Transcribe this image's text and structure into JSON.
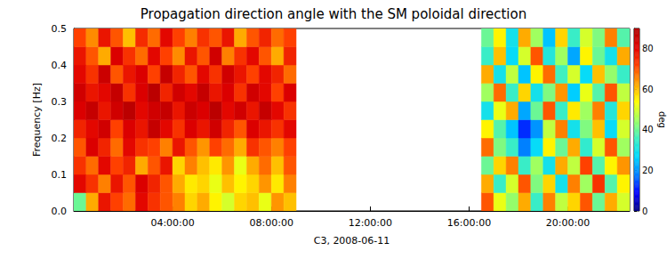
{
  "chart_data": {
    "type": "heatmap",
    "title": "Propagation direction angle with the SM poloidal direction",
    "x_label": "C3, 2008-06-11",
    "y_label": "Frequency [Hz]",
    "xlim": [
      0,
      22.5
    ],
    "xticks": [
      {
        "value": 4,
        "label": "04:00:00"
      },
      {
        "value": 8,
        "label": "08:00:00"
      },
      {
        "value": 12,
        "label": "12:00:00"
      },
      {
        "value": 16,
        "label": "16:00:00"
      },
      {
        "value": 20,
        "label": "20:00:00"
      }
    ],
    "ylim": [
      0,
      0.5
    ],
    "yticks": [
      {
        "value": 0,
        "label": "0.0"
      },
      0.1,
      0.2,
      0.3,
      0.4,
      0.5
    ],
    "grid": false,
    "x": [
      0,
      0.5,
      1,
      1.5,
      2,
      2.5,
      3,
      3.5,
      4,
      4.5,
      5,
      5.5,
      6,
      6.5,
      7,
      7.5,
      8,
      8.5,
      16.5,
      17,
      17.5,
      18,
      18.5,
      19,
      19.5,
      20,
      20.5,
      21,
      21.5,
      22
    ],
    "y": [
      0,
      0.05,
      0.1,
      0.15,
      0.2,
      0.25,
      0.3,
      0.35,
      0.4,
      0.45
    ],
    "cell_width": 0.5,
    "cell_height": 0.05,
    "values": [
      [
        40,
        62,
        78,
        72,
        68,
        80,
        74,
        70,
        66,
        58,
        62,
        55,
        50,
        58,
        60,
        52,
        64,
        60,
        70,
        52,
        44,
        62,
        35,
        66,
        48,
        58,
        70,
        40,
        62,
        50
      ],
      [
        80,
        74,
        66,
        78,
        70,
        82,
        76,
        70,
        62,
        56,
        58,
        52,
        60,
        55,
        58,
        64,
        56,
        66,
        62,
        35,
        50,
        70,
        42,
        58,
        30,
        66,
        45,
        74,
        38,
        55
      ],
      [
        74,
        68,
        80,
        72,
        76,
        62,
        70,
        78,
        58,
        66,
        60,
        56,
        64,
        52,
        62,
        68,
        60,
        70,
        40,
        58,
        66,
        35,
        45,
        30,
        62,
        48,
        72,
        38,
        55,
        64
      ],
      [
        70,
        82,
        76,
        68,
        80,
        74,
        72,
        66,
        78,
        70,
        64,
        72,
        68,
        62,
        74,
        70,
        66,
        72,
        68,
        42,
        35,
        18,
        28,
        55,
        40,
        62,
        34,
        50,
        70,
        45
      ],
      [
        76,
        80,
        84,
        72,
        82,
        78,
        86,
        80,
        74,
        82,
        78,
        84,
        76,
        70,
        82,
        78,
        74,
        80,
        55,
        38,
        25,
        12,
        20,
        48,
        66,
        30,
        42,
        60,
        28,
        50
      ],
      [
        82,
        86,
        78,
        84,
        88,
        80,
        84,
        86,
        78,
        85,
        82,
        88,
        80,
        84,
        78,
        86,
        80,
        74,
        30,
        52,
        62,
        22,
        40,
        70,
        35,
        56,
        45,
        66,
        32,
        58
      ],
      [
        84,
        78,
        80,
        86,
        74,
        82,
        88,
        76,
        84,
        80,
        86,
        78,
        82,
        74,
        84,
        80,
        72,
        82,
        45,
        68,
        35,
        58,
        30,
        42,
        64,
        26,
        52,
        38,
        70,
        48
      ],
      [
        80,
        74,
        85,
        70,
        78,
        82,
        72,
        86,
        76,
        70,
        80,
        74,
        84,
        78,
        72,
        80,
        76,
        68,
        62,
        30,
        48,
        25,
        55,
        68,
        36,
        50,
        28,
        60,
        44,
        35
      ],
      [
        78,
        70,
        62,
        82,
        74,
        68,
        80,
        72,
        65,
        78,
        70,
        84,
        66,
        74,
        80,
        70,
        62,
        76,
        35,
        60,
        28,
        50,
        70,
        32,
        45,
        22,
        55,
        40,
        30,
        62
      ],
      [
        72,
        65,
        78,
        70,
        60,
        75,
        68,
        80,
        72,
        66,
        74,
        70,
        78,
        62,
        70,
        76,
        68,
        72,
        40,
        55,
        30,
        62,
        45,
        25,
        58,
        35,
        50,
        42,
        66,
        38
      ]
    ],
    "colorbar_label": "deg",
    "clim": [
      0,
      90
    ],
    "colorbar_ticks": [
      0,
      20,
      40,
      60,
      80
    ]
  }
}
